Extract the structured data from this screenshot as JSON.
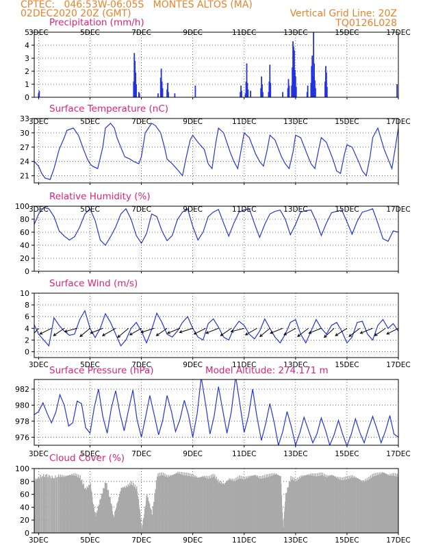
{
  "header": {
    "line1": "CPTEC:   046:53W-06:05S   MONTES ALTOS (MA)",
    "line2": "02DEC2020 20Z (GMT)",
    "grid_note": "Vertical Grid Line: 20Z",
    "code": "TQ0126L028"
  },
  "colors": {
    "header": "#e8832a",
    "title": "#e0207a",
    "series": "#2233dd",
    "cloud": "#a9a9a9",
    "arrow": "#000000"
  },
  "x_axis": {
    "tick_labels": [
      "3DEC",
      "5DEC",
      "7DEC",
      "9DEC",
      "11DEC",
      "13DEC",
      "15DEC",
      "17DEC"
    ],
    "start": "02DEC2020 20Z",
    "end": "17DEC2020 00Z"
  },
  "chart_data": [
    {
      "id": "precip",
      "type": "bar",
      "title": "Precipitation (mm/h)",
      "ylim": [
        0,
        5
      ],
      "yticks": [
        0,
        1,
        2,
        3,
        4,
        5
      ],
      "grid": true,
      "events": [
        {
          "day": 2.45,
          "values": [
            0.3,
            0.6
          ]
        },
        {
          "day": 2.55,
          "values": [
            0.8,
            1.1,
            1.6,
            2.2,
            2.9,
            2.6,
            1.5,
            0.9,
            0.4
          ]
        },
        {
          "day": 3.0,
          "values": [
            0.3,
            0.5
          ]
        },
        {
          "day": 6.7,
          "values": [
            1.2,
            3.4,
            2.8,
            1.9,
            1.0
          ]
        },
        {
          "day": 6.9,
          "values": [
            0.4,
            0.3
          ]
        },
        {
          "day": 7.65,
          "values": [
            0.3
          ]
        },
        {
          "day": 7.75,
          "values": [
            1.5,
            2.2,
            1.2,
            0.7
          ]
        },
        {
          "day": 8.0,
          "values": [
            0.6,
            1.1,
            0.4
          ]
        },
        {
          "day": 8.3,
          "values": [
            0.3
          ]
        },
        {
          "day": 9.1,
          "values": [
            0.9
          ]
        },
        {
          "day": 10.85,
          "values": [
            0.4,
            0.9,
            0.5
          ]
        },
        {
          "day": 11.05,
          "values": [
            0.3,
            1.2,
            2.6,
            1.1,
            0.6
          ]
        },
        {
          "day": 11.25,
          "values": [
            0.5
          ]
        },
        {
          "day": 11.65,
          "values": [
            0.7,
            1.6,
            1.0,
            0.4
          ]
        },
        {
          "day": 11.95,
          "values": [
            0.4,
            1.2,
            2.5,
            1.1
          ]
        },
        {
          "day": 12.5,
          "values": [
            0.4
          ]
        },
        {
          "day": 12.7,
          "values": [
            0.7,
            1.4,
            0.9
          ]
        },
        {
          "day": 12.85,
          "values": [
            0.9,
            2.3,
            4.3,
            3.9,
            3.6,
            2.1,
            1.6,
            0.8
          ]
        },
        {
          "day": 13.45,
          "values": [
            0.4,
            0.9
          ]
        },
        {
          "day": 13.6,
          "values": [
            1.1,
            2.4,
            3.2,
            1.6,
            5.0,
            2.6,
            1.3,
            0.7
          ]
        },
        {
          "day": 14.15,
          "values": [
            1.2,
            2.4,
            1.9,
            0.8
          ]
        },
        {
          "day": 16.95,
          "values": [
            1.0
          ]
        }
      ]
    },
    {
      "id": "temp",
      "type": "line",
      "title": "Surface Temperature (nC)",
      "ylim": [
        19.5,
        33
      ],
      "yticks": [
        21,
        24,
        27,
        30,
        33
      ],
      "grid": true,
      "x": [
        2.83,
        3.0,
        3.12,
        3.25,
        3.45,
        3.6,
        3.8,
        4.0,
        4.1,
        4.35,
        4.55,
        4.75,
        4.9,
        5.0,
        5.1,
        5.3,
        5.5,
        5.6,
        5.8,
        5.95,
        6.05,
        6.2,
        6.35,
        6.55,
        6.7,
        6.9,
        7.0,
        7.15,
        7.4,
        7.55,
        7.75,
        7.9,
        8.0,
        8.2,
        8.45,
        8.6,
        8.75,
        8.9,
        9.0,
        9.2,
        9.45,
        9.6,
        9.75,
        9.9,
        10.0,
        10.2,
        10.45,
        10.6,
        10.75,
        10.9,
        11.0,
        11.2,
        11.45,
        11.6,
        11.75,
        11.9,
        12.0,
        12.2,
        12.45,
        12.6,
        12.75,
        12.9,
        13.0,
        13.2,
        13.45,
        13.6,
        13.75,
        13.9,
        14.0,
        14.2,
        14.45,
        14.6,
        14.75,
        14.9,
        15.0,
        15.2,
        15.45,
        15.6,
        15.75,
        15.9,
        16.0,
        16.2,
        16.45,
        16.6,
        16.75,
        16.9,
        17.0
      ],
      "values": [
        24.0,
        23.0,
        21.5,
        20.5,
        20.2,
        22.5,
        26.5,
        29.0,
        30.5,
        31.0,
        29.5,
        26.5,
        24.5,
        23.5,
        23.0,
        22.5,
        27.0,
        31.0,
        32.0,
        31.0,
        29.0,
        27.0,
        25.0,
        24.5,
        24.0,
        23.5,
        25.0,
        30.0,
        32.0,
        31.5,
        30.0,
        27.0,
        24.5,
        23.5,
        22.0,
        21.0,
        25.0,
        28.5,
        29.5,
        28.0,
        26.5,
        23.5,
        22.5,
        28.0,
        31.0,
        30.0,
        26.0,
        24.0,
        22.5,
        27.0,
        30.0,
        29.0,
        25.5,
        24.0,
        23.0,
        26.5,
        29.5,
        28.5,
        25.0,
        23.5,
        22.5,
        26.0,
        29.5,
        29.0,
        25.5,
        23.5,
        22.5,
        26.5,
        29.0,
        28.0,
        24.5,
        22.0,
        21.5,
        25.5,
        27.5,
        27.0,
        24.0,
        22.0,
        21.0,
        25.0,
        29.0,
        31.0,
        26.5,
        24.5,
        22.5,
        27.5,
        31.0
      ]
    },
    {
      "id": "rh",
      "type": "line",
      "title": "Relative Humidity (%)",
      "ylim": [
        0,
        100
      ],
      "yticks": [
        0,
        20,
        40,
        60,
        80,
        100
      ],
      "grid": true,
      "x": [
        2.83,
        3.0,
        3.2,
        3.4,
        3.6,
        3.8,
        4.0,
        4.2,
        4.4,
        4.6,
        4.8,
        5.0,
        5.2,
        5.4,
        5.6,
        5.8,
        6.0,
        6.2,
        6.4,
        6.6,
        6.8,
        7.0,
        7.2,
        7.4,
        7.6,
        7.8,
        8.0,
        8.2,
        8.4,
        8.6,
        8.8,
        9.0,
        9.2,
        9.4,
        9.6,
        9.8,
        10.0,
        10.2,
        10.4,
        10.6,
        10.8,
        11.0,
        11.2,
        11.4,
        11.6,
        11.8,
        12.0,
        12.2,
        12.4,
        12.6,
        12.8,
        13.0,
        13.2,
        13.4,
        13.6,
        13.8,
        14.0,
        14.2,
        14.4,
        14.6,
        14.8,
        15.0,
        15.2,
        15.4,
        15.6,
        15.8,
        16.0,
        16.2,
        16.4,
        16.6,
        16.8,
        17.0
      ],
      "values": [
        72,
        88,
        98,
        96,
        84,
        62,
        54,
        48,
        53,
        68,
        88,
        96,
        78,
        48,
        40,
        53,
        68,
        88,
        96,
        80,
        55,
        43,
        58,
        88,
        84,
        62,
        47,
        55,
        79,
        91,
        96,
        69,
        48,
        60,
        84,
        91,
        95,
        74,
        54,
        74,
        91,
        94,
        96,
        73,
        52,
        72,
        88,
        92,
        94,
        80,
        56,
        72,
        91,
        93,
        94,
        77,
        55,
        74,
        90,
        92,
        94,
        76,
        57,
        77,
        91,
        93,
        96,
        74,
        50,
        46,
        62,
        60
      ]
    },
    {
      "id": "wind",
      "type": "line",
      "title": "Surface Wind (m/s)",
      "ylim": [
        -1,
        10
      ],
      "yticks": [
        0,
        2,
        4,
        6,
        8,
        10
      ],
      "grid": true,
      "x": [
        2.83,
        3.0,
        3.2,
        3.4,
        3.6,
        3.8,
        4.0,
        4.2,
        4.4,
        4.6,
        4.8,
        5.0,
        5.2,
        5.4,
        5.6,
        5.8,
        6.0,
        6.2,
        6.4,
        6.6,
        6.8,
        7.0,
        7.2,
        7.4,
        7.6,
        7.8,
        8.0,
        8.2,
        8.4,
        8.6,
        8.8,
        9.0,
        9.2,
        9.4,
        9.6,
        9.8,
        10.0,
        10.2,
        10.4,
        10.6,
        10.8,
        11.0,
        11.2,
        11.4,
        11.6,
        11.8,
        12.0,
        12.2,
        12.4,
        12.6,
        12.8,
        13.0,
        13.2,
        13.4,
        13.6,
        13.8,
        14.0,
        14.2,
        14.4,
        14.6,
        14.8,
        15.0,
        15.2,
        15.4,
        15.6,
        15.8,
        16.0,
        16.2,
        16.4,
        16.6,
        16.8,
        17.0
      ],
      "values": [
        4.6,
        3.0,
        2.0,
        1.0,
        5.8,
        4.5,
        3.5,
        2.8,
        3.0,
        5.5,
        7.0,
        4.0,
        2.4,
        4.0,
        6.5,
        5.0,
        3.0,
        1.0,
        2.0,
        4.0,
        5.0,
        3.5,
        1.5,
        3.8,
        6.6,
        5.0,
        3.0,
        2.5,
        3.5,
        5.0,
        6.0,
        4.0,
        2.5,
        2.0,
        4.8,
        5.6,
        4.2,
        2.5,
        2.0,
        4.0,
        5.2,
        4.5,
        3.0,
        2.2,
        3.5,
        5.6,
        4.0,
        2.5,
        1.5,
        3.0,
        5.0,
        5.5,
        3.0,
        1.5,
        3.5,
        5.5,
        4.0,
        3.0,
        4.5,
        5.0,
        3.5,
        1.5,
        2.5,
        5.0,
        5.2,
        3.0,
        2.0,
        4.5,
        5.5,
        4.0,
        4.8,
        3.5
      ],
      "arrows": [
        {
          "day": 3.0,
          "u": 1.1,
          "v": 1.2
        },
        {
          "day": 3.5,
          "u": 1.4,
          "v": 0.7
        },
        {
          "day": 4.0,
          "u": 1.3,
          "v": 0.9
        },
        {
          "day": 4.5,
          "u": 1.5,
          "v": 0.4
        },
        {
          "day": 5.0,
          "u": 1.2,
          "v": 1.0
        },
        {
          "day": 5.5,
          "u": 1.5,
          "v": 0.6
        },
        {
          "day": 6.0,
          "u": 1.6,
          "v": 0.9
        },
        {
          "day": 6.5,
          "u": 1.3,
          "v": 1.1
        },
        {
          "day": 7.0,
          "u": 1.4,
          "v": 0.8
        },
        {
          "day": 7.5,
          "u": 1.6,
          "v": 0.5
        },
        {
          "day": 8.0,
          "u": 1.3,
          "v": 0.9
        },
        {
          "day": 8.5,
          "u": 1.5,
          "v": 0.6
        },
        {
          "day": 9.0,
          "u": 1.6,
          "v": 0.5
        },
        {
          "day": 9.5,
          "u": 1.4,
          "v": 0.7
        },
        {
          "day": 10.0,
          "u": 1.5,
          "v": 0.6
        },
        {
          "day": 10.5,
          "u": 1.3,
          "v": 0.9
        },
        {
          "day": 11.0,
          "u": 1.6,
          "v": 0.4
        },
        {
          "day": 11.5,
          "u": 1.4,
          "v": 0.8
        },
        {
          "day": 12.0,
          "u": 1.2,
          "v": 1.0
        },
        {
          "day": 12.5,
          "u": 1.5,
          "v": 0.6
        },
        {
          "day": 13.0,
          "u": 1.4,
          "v": 0.8
        },
        {
          "day": 13.5,
          "u": 1.3,
          "v": 1.0
        },
        {
          "day": 14.0,
          "u": 1.5,
          "v": 0.6
        },
        {
          "day": 14.5,
          "u": 1.2,
          "v": 1.1
        },
        {
          "day": 15.0,
          "u": 1.4,
          "v": 0.9
        },
        {
          "day": 15.5,
          "u": 1.3,
          "v": 1.0
        },
        {
          "day": 16.0,
          "u": 1.5,
          "v": 0.6
        },
        {
          "day": 16.5,
          "u": 1.3,
          "v": 0.9
        },
        {
          "day": 17.0,
          "u": 1.4,
          "v": 0.7
        }
      ]
    },
    {
      "id": "pres",
      "type": "line",
      "title": "Surface Pressure (hPa)",
      "subtitle": "Model Altitude: 274.171 m",
      "ylim": [
        975,
        983.2
      ],
      "yticks": [
        976,
        978,
        980,
        982
      ],
      "grid": true,
      "x": [
        2.83,
        3.0,
        3.17,
        3.33,
        3.5,
        3.67,
        3.83,
        4.0,
        4.17,
        4.33,
        4.5,
        4.67,
        4.83,
        5.0,
        5.17,
        5.33,
        5.5,
        5.67,
        5.83,
        6.0,
        6.17,
        6.33,
        6.5,
        6.67,
        6.83,
        7.0,
        7.17,
        7.33,
        7.5,
        7.67,
        7.83,
        8.0,
        8.17,
        8.33,
        8.5,
        8.67,
        8.83,
        9.0,
        9.17,
        9.33,
        9.5,
        9.67,
        9.83,
        10.0,
        10.17,
        10.33,
        10.5,
        10.67,
        10.83,
        11.0,
        11.17,
        11.33,
        11.5,
        11.67,
        11.83,
        12.0,
        12.17,
        12.33,
        12.5,
        12.67,
        12.83,
        13.0,
        13.17,
        13.33,
        13.5,
        13.67,
        13.83,
        14.0,
        14.17,
        14.33,
        14.5,
        14.67,
        14.83,
        15.0,
        15.17,
        15.33,
        15.5,
        15.67,
        15.83,
        16.0,
        16.17,
        16.33,
        16.5,
        16.67,
        16.83,
        17.0
      ],
      "values": [
        978.8,
        979.2,
        980.3,
        979.0,
        977.8,
        979.1,
        981.3,
        980.0,
        977.4,
        977.8,
        980.5,
        980.2,
        977.2,
        976.5,
        979.8,
        982.0,
        978.6,
        976.5,
        979.6,
        981.8,
        978.9,
        976.8,
        979.4,
        981.9,
        978.2,
        976.0,
        978.6,
        981.2,
        978.8,
        976.3,
        978.1,
        981.2,
        979.2,
        976.7,
        978.2,
        980.6,
        978.8,
        976.0,
        978.9,
        983.5,
        980.1,
        976.4,
        978.6,
        982.3,
        979.3,
        976.5,
        979.2,
        983.6,
        980.2,
        976.6,
        978.7,
        982.0,
        978.5,
        975.6,
        977.6,
        980.2,
        977.8,
        975.0,
        976.7,
        979.2,
        977.4,
        975.0,
        976.6,
        978.5,
        976.9,
        975.3,
        976.4,
        978.4,
        976.8,
        975.0,
        976.3,
        978.1,
        976.4,
        974.9,
        976.4,
        978.3,
        976.6,
        975.3,
        977.0,
        978.6,
        977.0,
        975.3,
        976.8,
        978.7,
        976.4,
        976.0
      ]
    },
    {
      "id": "cloud",
      "type": "area",
      "title": "Cloud Cover (%)",
      "ylim": [
        0,
        100
      ],
      "yticks": [
        0,
        20,
        40,
        60,
        80,
        100
      ],
      "grid": true,
      "x": [
        2.83,
        3.05,
        3.3,
        3.55,
        3.8,
        4.0,
        4.2,
        4.4,
        4.6,
        4.8,
        5.0,
        5.1,
        5.2,
        5.4,
        5.6,
        5.8,
        5.9,
        6.0,
        6.2,
        6.4,
        6.6,
        6.8,
        6.9,
        7.0,
        7.1,
        7.2,
        7.4,
        7.6,
        7.8,
        8.0,
        8.2,
        8.4,
        8.6,
        8.8,
        9.0,
        9.2,
        9.4,
        9.6,
        9.8,
        10.0,
        10.2,
        10.4,
        10.6,
        10.8,
        11.0,
        11.2,
        11.4,
        11.6,
        11.8,
        12.0,
        12.2,
        12.4,
        12.5,
        12.6,
        12.8,
        13.0,
        13.2,
        13.4,
        13.6,
        13.8,
        14.0,
        14.2,
        14.4,
        14.6,
        14.8,
        15.0,
        15.2,
        15.4,
        15.6,
        15.8,
        16.0,
        16.2,
        16.4,
        16.6,
        16.8,
        17.0
      ],
      "values": [
        82,
        88,
        90,
        86,
        89,
        88,
        90,
        91,
        87,
        68,
        76,
        45,
        26,
        55,
        80,
        48,
        22,
        40,
        70,
        72,
        78,
        70,
        40,
        5,
        30,
        60,
        30,
        90,
        92,
        88,
        90,
        94,
        92,
        91,
        89,
        86,
        88,
        86,
        90,
        80,
        76,
        84,
        82,
        87,
        85,
        88,
        90,
        86,
        88,
        90,
        92,
        88,
        2,
        60,
        86,
        82,
        88,
        90,
        91,
        90,
        92,
        88,
        90,
        86,
        84,
        86,
        88,
        85,
        80,
        84,
        90,
        92,
        94,
        90,
        91,
        89
      ]
    }
  ]
}
